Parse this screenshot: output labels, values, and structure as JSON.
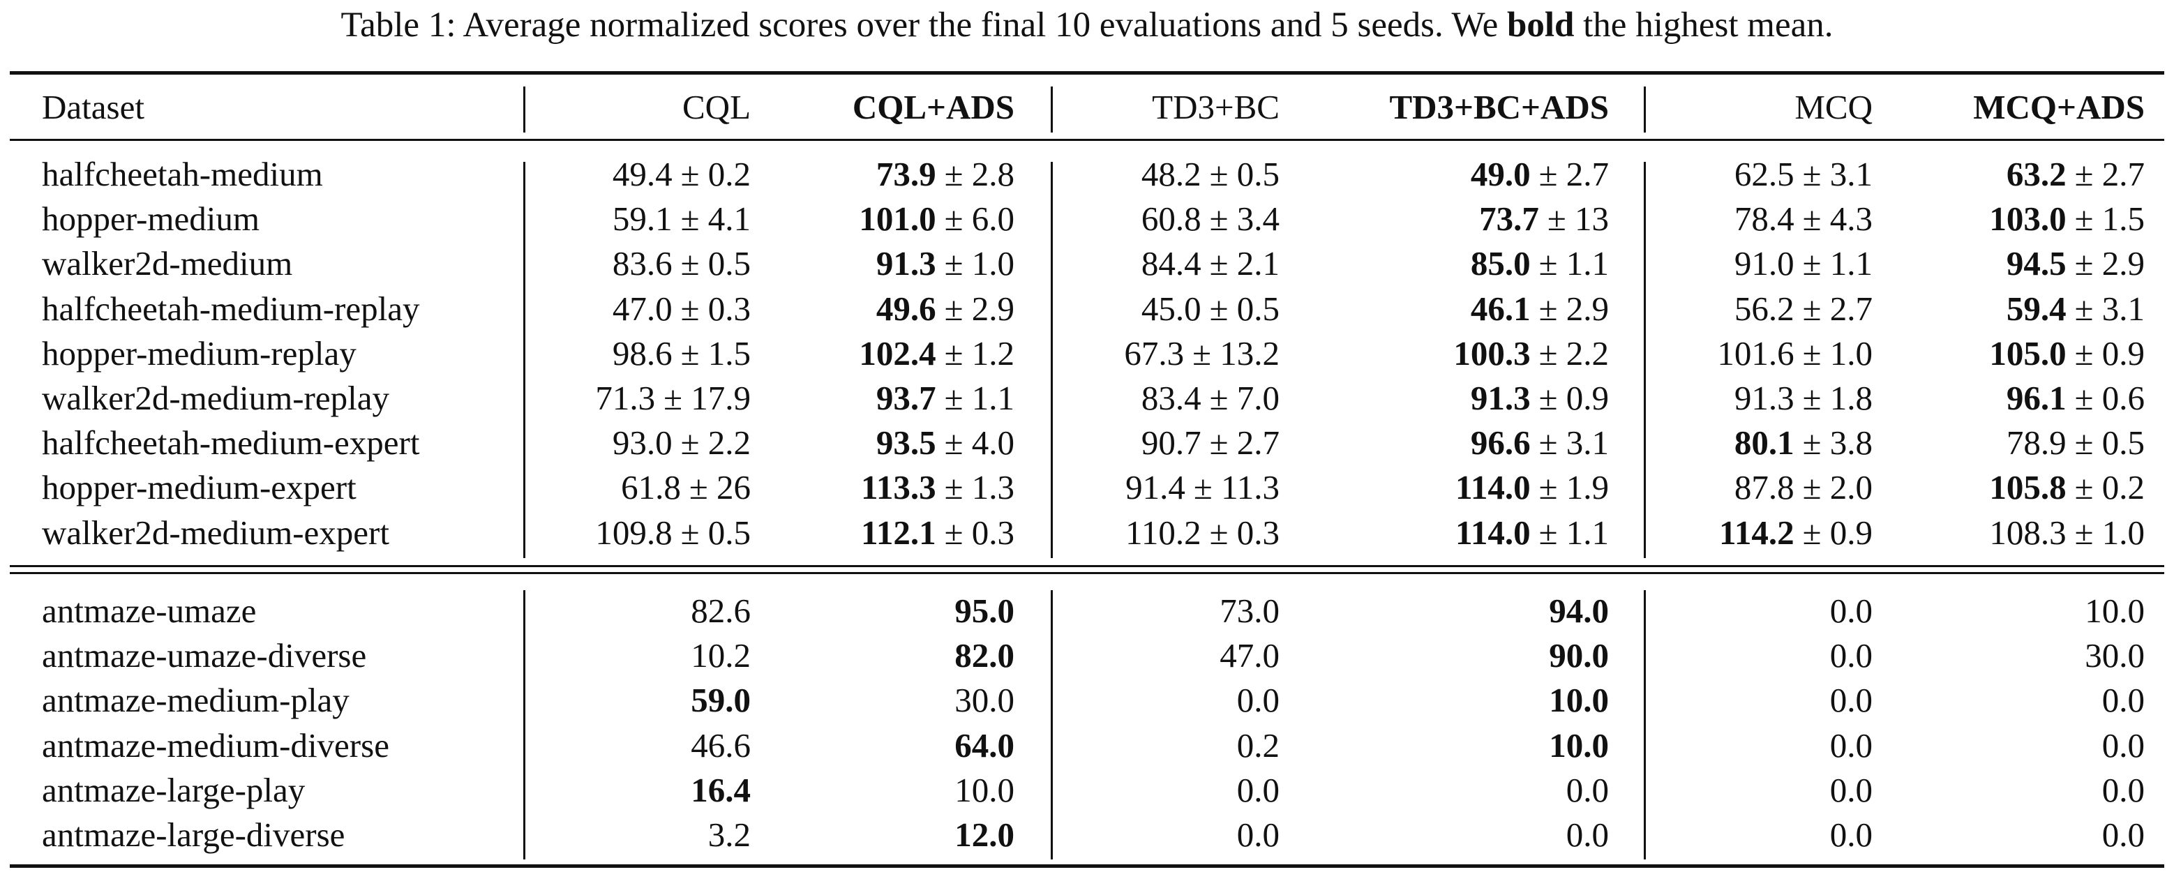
{
  "caption": {
    "prefix": "Table 1: Average normalized scores over the final 10 evaluations and 5 seeds. We",
    "bold": "bold",
    "suffix": "the highest mean."
  },
  "table": {
    "header": [
      {
        "text": "Dataset"
      },
      {
        "text": "CQL"
      },
      {
        "text": "CQL+ADS",
        "bold": true
      },
      {
        "text": "TD3+BC"
      },
      {
        "text": "TD3+BC+ADS",
        "bold": true
      },
      {
        "text": "MCQ"
      },
      {
        "text": "MCQ+ADS",
        "bold": true
      }
    ],
    "sections": [
      [
        {
          "dataset": "halfcheetah-medium",
          "cells": [
            {
              "mean": "49.4",
              "pm": "± 0.2"
            },
            {
              "mean": "73.9",
              "pm": "± 2.8",
              "bold": true
            },
            {
              "mean": "48.2",
              "pm": "± 0.5"
            },
            {
              "mean": "49.0",
              "pm": "± 2.7",
              "bold": true
            },
            {
              "mean": "62.5",
              "pm": "± 3.1"
            },
            {
              "mean": "63.2",
              "pm": "± 2.7",
              "bold": true
            }
          ]
        },
        {
          "dataset": "hopper-medium",
          "cells": [
            {
              "mean": "59.1",
              "pm": "± 4.1"
            },
            {
              "mean": "101.0",
              "pm": "± 6.0",
              "bold": true
            },
            {
              "mean": "60.8",
              "pm": "± 3.4"
            },
            {
              "mean": "73.7",
              "pm": "± 13",
              "bold": true
            },
            {
              "mean": "78.4",
              "pm": "± 4.3"
            },
            {
              "mean": "103.0",
              "pm": "± 1.5",
              "bold": true
            }
          ]
        },
        {
          "dataset": "walker2d-medium",
          "cells": [
            {
              "mean": "83.6",
              "pm": "± 0.5"
            },
            {
              "mean": "91.3",
              "pm": "± 1.0",
              "bold": true
            },
            {
              "mean": "84.4",
              "pm": "± 2.1"
            },
            {
              "mean": "85.0",
              "pm": "± 1.1",
              "bold": true
            },
            {
              "mean": "91.0",
              "pm": "± 1.1"
            },
            {
              "mean": "94.5",
              "pm": "± 2.9",
              "bold": true
            }
          ]
        },
        {
          "dataset": "halfcheetah-medium-replay",
          "cells": [
            {
              "mean": "47.0",
              "pm": "± 0.3"
            },
            {
              "mean": "49.6",
              "pm": "± 2.9",
              "bold": true
            },
            {
              "mean": "45.0",
              "pm": "± 0.5"
            },
            {
              "mean": "46.1",
              "pm": "± 2.9",
              "bold": true
            },
            {
              "mean": "56.2",
              "pm": "± 2.7"
            },
            {
              "mean": "59.4",
              "pm": "± 3.1",
              "bold": true
            }
          ]
        },
        {
          "dataset": "hopper-medium-replay",
          "cells": [
            {
              "mean": "98.6",
              "pm": "± 1.5"
            },
            {
              "mean": "102.4",
              "pm": "± 1.2",
              "bold": true
            },
            {
              "mean": "67.3",
              "pm": "± 13.2"
            },
            {
              "mean": "100.3",
              "pm": "± 2.2",
              "bold": true
            },
            {
              "mean": "101.6",
              "pm": "± 1.0"
            },
            {
              "mean": "105.0",
              "pm": "± 0.9",
              "bold": true
            }
          ]
        },
        {
          "dataset": "walker2d-medium-replay",
          "cells": [
            {
              "mean": "71.3",
              "pm": "± 17.9"
            },
            {
              "mean": "93.7",
              "pm": "± 1.1",
              "bold": true
            },
            {
              "mean": "83.4",
              "pm": "± 7.0"
            },
            {
              "mean": "91.3",
              "pm": "± 0.9",
              "bold": true
            },
            {
              "mean": "91.3",
              "pm": "± 1.8"
            },
            {
              "mean": "96.1",
              "pm": "± 0.6",
              "bold": true
            }
          ]
        },
        {
          "dataset": "halfcheetah-medium-expert",
          "cells": [
            {
              "mean": "93.0",
              "pm": "± 2.2"
            },
            {
              "mean": "93.5",
              "pm": "± 4.0",
              "bold": true
            },
            {
              "mean": "90.7",
              "pm": "± 2.7"
            },
            {
              "mean": "96.6",
              "pm": "± 3.1",
              "bold": true
            },
            {
              "mean": "80.1",
              "pm": "± 3.8",
              "bold": true
            },
            {
              "mean": "78.9",
              "pm": "± 0.5"
            }
          ]
        },
        {
          "dataset": "hopper-medium-expert",
          "cells": [
            {
              "mean": "61.8",
              "pm": "± 26"
            },
            {
              "mean": "113.3",
              "pm": "± 1.3",
              "bold": true
            },
            {
              "mean": "91.4",
              "pm": "± 11.3"
            },
            {
              "mean": "114.0",
              "pm": "± 1.9",
              "bold": true
            },
            {
              "mean": "87.8",
              "pm": "± 2.0"
            },
            {
              "mean": "105.8",
              "pm": "± 0.2",
              "bold": true
            }
          ]
        },
        {
          "dataset": "walker2d-medium-expert",
          "cells": [
            {
              "mean": "109.8",
              "pm": "± 0.5"
            },
            {
              "mean": "112.1",
              "pm": "± 0.3",
              "bold": true
            },
            {
              "mean": "110.2",
              "pm": "± 0.3"
            },
            {
              "mean": "114.0",
              "pm": "± 1.1",
              "bold": true
            },
            {
              "mean": "114.2",
              "pm": "± 0.9",
              "bold": true
            },
            {
              "mean": "108.3",
              "pm": "± 1.0"
            }
          ]
        }
      ],
      [
        {
          "dataset": "antmaze-umaze",
          "cells": [
            {
              "mean": "82.6"
            },
            {
              "mean": "95.0",
              "bold": true
            },
            {
              "mean": "73.0"
            },
            {
              "mean": "94.0",
              "bold": true
            },
            {
              "mean": "0.0"
            },
            {
              "mean": "10.0"
            }
          ]
        },
        {
          "dataset": "antmaze-umaze-diverse",
          "cells": [
            {
              "mean": "10.2"
            },
            {
              "mean": "82.0",
              "bold": true
            },
            {
              "mean": "47.0"
            },
            {
              "mean": "90.0",
              "bold": true
            },
            {
              "mean": "0.0"
            },
            {
              "mean": "30.0"
            }
          ]
        },
        {
          "dataset": "antmaze-medium-play",
          "cells": [
            {
              "mean": "59.0",
              "bold": true
            },
            {
              "mean": "30.0"
            },
            {
              "mean": "0.0"
            },
            {
              "mean": "10.0",
              "bold": true
            },
            {
              "mean": "0.0"
            },
            {
              "mean": "0.0"
            }
          ]
        },
        {
          "dataset": "antmaze-medium-diverse",
          "cells": [
            {
              "mean": "46.6"
            },
            {
              "mean": "64.0",
              "bold": true
            },
            {
              "mean": "0.2"
            },
            {
              "mean": "10.0",
              "bold": true
            },
            {
              "mean": "0.0"
            },
            {
              "mean": "0.0"
            }
          ]
        },
        {
          "dataset": "antmaze-large-play",
          "cells": [
            {
              "mean": "16.4",
              "bold": true
            },
            {
              "mean": "10.0"
            },
            {
              "mean": "0.0"
            },
            {
              "mean": "0.0"
            },
            {
              "mean": "0.0"
            },
            {
              "mean": "0.0"
            }
          ]
        },
        {
          "dataset": "antmaze-large-diverse",
          "cells": [
            {
              "mean": "3.2"
            },
            {
              "mean": "12.0",
              "bold": true
            },
            {
              "mean": "0.0"
            },
            {
              "mean": "0.0"
            },
            {
              "mean": "0.0"
            },
            {
              "mean": "0.0"
            }
          ]
        }
      ]
    ]
  }
}
